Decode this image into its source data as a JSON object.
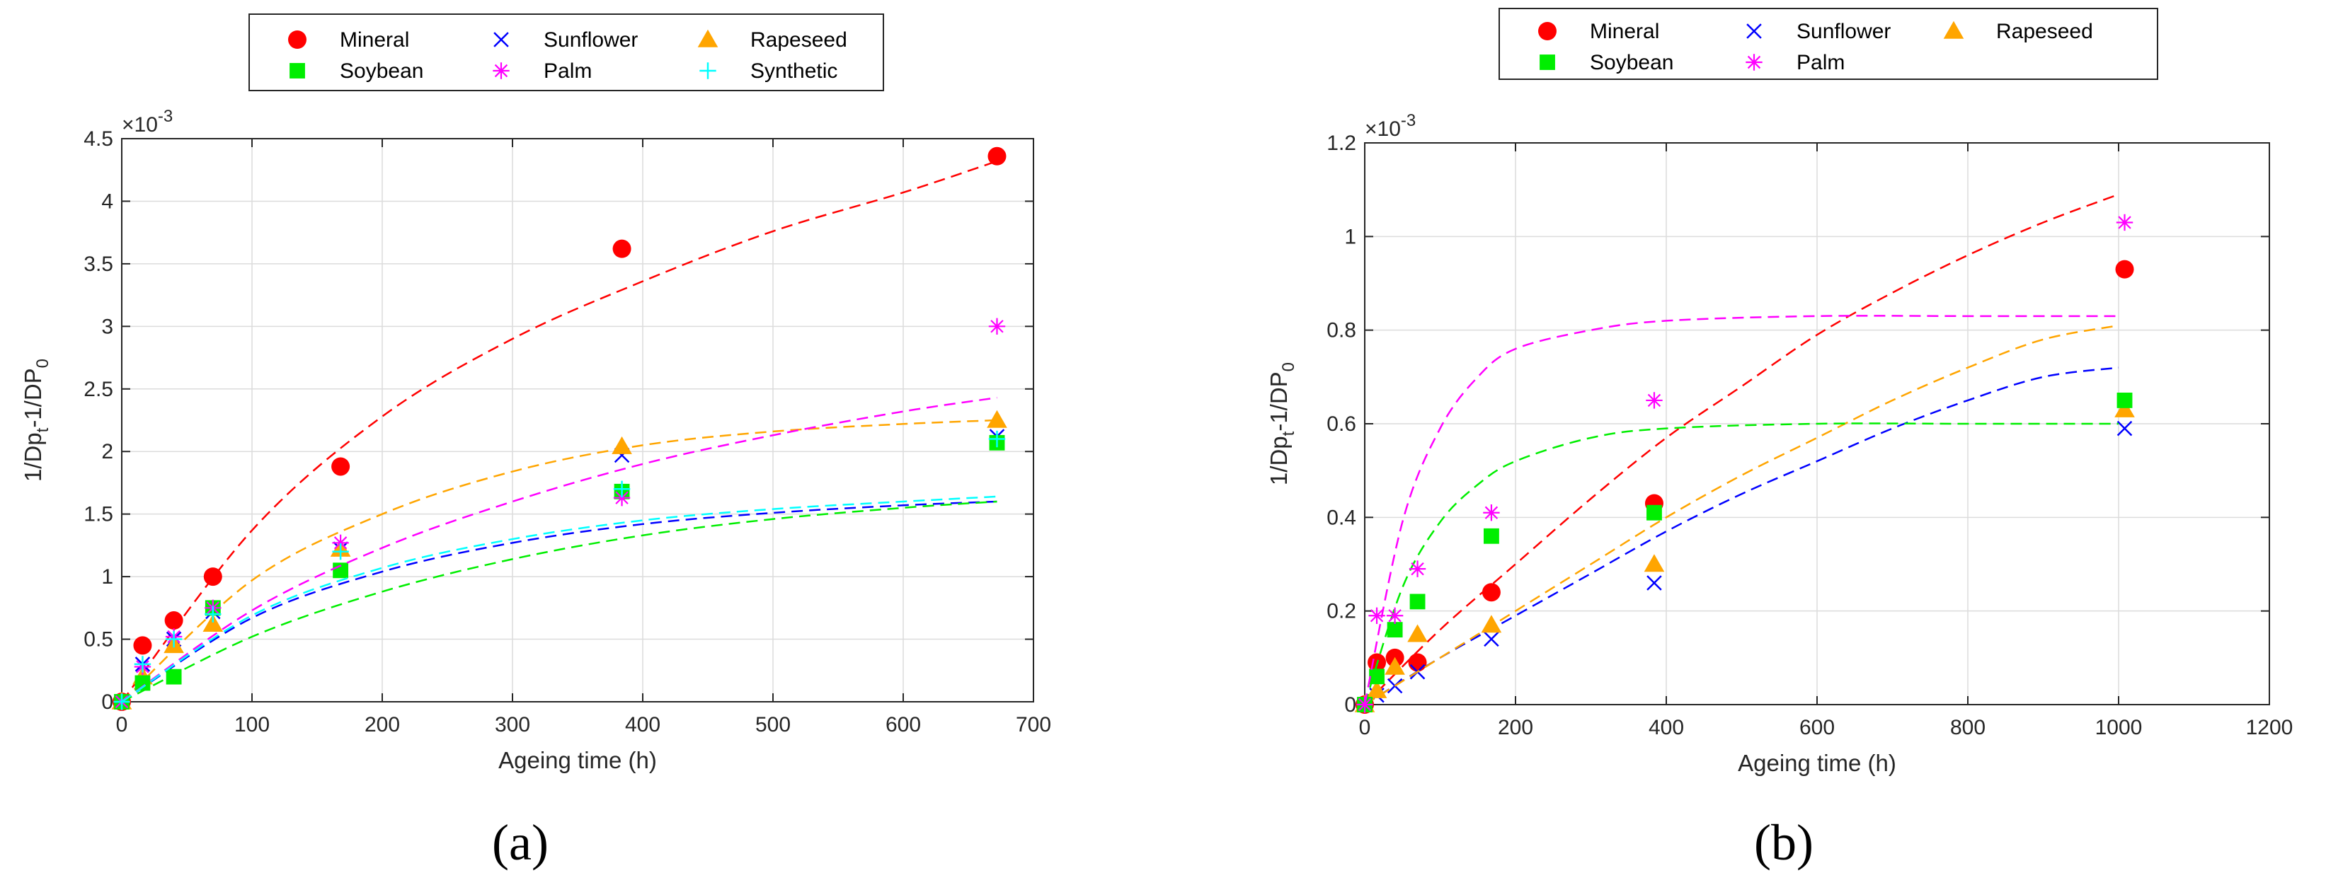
{
  "figure": {
    "caption_a": "(a)",
    "caption_b": "(b)"
  },
  "chart_data": [
    {
      "type": "scatter",
      "panel": "a",
      "xlabel": "Ageing time (h)",
      "ylabel": "1/Dp_t-1/DP_0",
      "ylabel_parts": {
        "main": "1/Dp",
        "sub1": "t",
        "mid": "-1/DP",
        "sub2": "0"
      },
      "y_multiplier": "×10",
      "y_multiplier_exp": "-3",
      "xlim": [
        0,
        700
      ],
      "ylim": [
        0,
        4.5
      ],
      "xticks": [
        0,
        100,
        200,
        300,
        400,
        500,
        600,
        700
      ],
      "yticks": [
        0,
        0.5,
        1,
        1.5,
        2,
        2.5,
        3,
        3.5,
        4,
        4.5
      ],
      "ytick_labels": [
        "0",
        "0.5",
        "1",
        "1.5",
        "2",
        "2.5",
        "3",
        "3.5",
        "4",
        "4.5"
      ],
      "grid": true,
      "legend": {
        "placement": "top",
        "columns": 3,
        "entries": [
          "Mineral",
          "Sunflower",
          "Rapeseed",
          "Soybean",
          "Palm",
          "Synthetic"
        ]
      },
      "series": [
        {
          "name": "Mineral",
          "color": "#ff0000",
          "marker": "circle",
          "x": [
            0,
            16,
            40,
            70,
            168,
            384,
            672
          ],
          "y": [
            0,
            0.45,
            0.65,
            1.0,
            1.88,
            3.62,
            4.36
          ],
          "fit_x": [
            0,
            100,
            200,
            300,
            400,
            500,
            600,
            672
          ],
          "fit_y": [
            0,
            1.37,
            2.28,
            2.9,
            3.36,
            3.76,
            4.07,
            4.32
          ]
        },
        {
          "name": "Sunflower",
          "color": "#0000ff",
          "marker": "x",
          "x": [
            0,
            16,
            40,
            70,
            168,
            384,
            672
          ],
          "y": [
            0,
            0.3,
            0.5,
            0.72,
            1.22,
            1.97,
            2.12
          ],
          "fit_x": [
            0,
            100,
            200,
            300,
            400,
            500,
            600,
            672
          ],
          "fit_y": [
            0,
            0.67,
            1.04,
            1.27,
            1.42,
            1.51,
            1.57,
            1.6
          ]
        },
        {
          "name": "Rapeseed",
          "color": "#ffa500",
          "marker": "triangle",
          "x": [
            0,
            16,
            40,
            70,
            168,
            384,
            672
          ],
          "y": [
            0,
            0.2,
            0.45,
            0.62,
            1.22,
            2.04,
            2.25
          ],
          "fit_x": [
            0,
            100,
            200,
            300,
            400,
            500,
            600,
            672
          ],
          "fit_y": [
            0,
            0.97,
            1.5,
            1.84,
            2.05,
            2.16,
            2.22,
            2.25
          ]
        },
        {
          "name": "Soybean",
          "color": "#00ee00",
          "marker": "square",
          "x": [
            0,
            16,
            40,
            70,
            168,
            384,
            672
          ],
          "y": [
            0,
            0.15,
            0.2,
            0.75,
            1.05,
            1.68,
            2.07
          ],
          "fit_x": [
            0,
            100,
            200,
            300,
            400,
            500,
            600,
            672
          ],
          "fit_y": [
            0,
            0.52,
            0.88,
            1.14,
            1.33,
            1.46,
            1.55,
            1.6
          ]
        },
        {
          "name": "Palm",
          "color": "#ff00ff",
          "marker": "asterisk",
          "x": [
            0,
            16,
            40,
            70,
            168,
            384,
            672
          ],
          "y": [
            0,
            0.28,
            0.52,
            0.75,
            1.27,
            1.63,
            3.0
          ],
          "fit_x": [
            0,
            100,
            200,
            300,
            400,
            500,
            600,
            672
          ],
          "fit_y": [
            0,
            0.73,
            1.23,
            1.6,
            1.9,
            2.13,
            2.32,
            2.43
          ]
        },
        {
          "name": "Synthetic",
          "color": "#00ffff",
          "marker": "plus",
          "x": [
            0,
            16,
            40,
            70,
            168,
            384,
            672
          ],
          "y": [
            0,
            0.3,
            0.5,
            0.7,
            1.2,
            1.7,
            2.1
          ],
          "fit_x": [
            0,
            100,
            200,
            300,
            400,
            500,
            600,
            672
          ],
          "fit_y": [
            0,
            0.69,
            1.07,
            1.3,
            1.45,
            1.54,
            1.6,
            1.64
          ]
        }
      ]
    },
    {
      "type": "scatter",
      "panel": "b",
      "xlabel": "Ageing time (h)",
      "ylabel": "1/Dp_t-1/DP_0",
      "ylabel_parts": {
        "main": "1/Dp",
        "sub1": "t",
        "mid": "-1/DP",
        "sub2": "0"
      },
      "y_multiplier": "×10",
      "y_multiplier_exp": "-3",
      "xlim": [
        0,
        1200
      ],
      "ylim": [
        0,
        1.2
      ],
      "xticks": [
        0,
        200,
        400,
        600,
        800,
        1000,
        1200
      ],
      "yticks": [
        0,
        0.2,
        0.4,
        0.6,
        0.8,
        1.0,
        1.2
      ],
      "ytick_labels": [
        "0",
        "0.2",
        "0.4",
        "0.6",
        "0.8",
        "1",
        "1.2"
      ],
      "grid": true,
      "legend": {
        "placement": "top",
        "columns": 3,
        "entries": [
          "Mineral",
          "Sunflower",
          "Rapeseed",
          "Soybean",
          "Palm"
        ]
      },
      "series": [
        {
          "name": "Mineral",
          "color": "#ff0000",
          "marker": "circle",
          "x": [
            0,
            16,
            40,
            70,
            168,
            384,
            1008
          ],
          "y": [
            0,
            0.09,
            0.1,
            0.09,
            0.24,
            0.43,
            0.93
          ],
          "fit_x": [
            0,
            100,
            200,
            300,
            400,
            500,
            600,
            700,
            800,
            900,
            1000
          ],
          "fit_y": [
            0,
            0.16,
            0.3,
            0.44,
            0.57,
            0.68,
            0.79,
            0.88,
            0.96,
            1.03,
            1.09
          ]
        },
        {
          "name": "Sunflower",
          "color": "#0000ff",
          "marker": "x",
          "x": [
            0,
            16,
            40,
            70,
            168,
            384,
            1008
          ],
          "y": [
            0,
            0.02,
            0.04,
            0.07,
            0.14,
            0.26,
            0.59
          ],
          "fit_x": [
            0,
            100,
            200,
            300,
            400,
            500,
            600,
            700,
            800,
            900,
            1000
          ],
          "fit_y": [
            0,
            0.1,
            0.19,
            0.28,
            0.37,
            0.45,
            0.52,
            0.59,
            0.65,
            0.7,
            0.72
          ]
        },
        {
          "name": "Rapeseed",
          "color": "#ffa500",
          "marker": "triangle",
          "x": [
            0,
            16,
            40,
            70,
            168,
            384,
            1008
          ],
          "y": [
            0,
            0.03,
            0.08,
            0.15,
            0.17,
            0.3,
            0.63
          ],
          "fit_x": [
            0,
            100,
            200,
            300,
            400,
            500,
            600,
            700,
            800,
            900,
            1000
          ],
          "fit_y": [
            0,
            0.1,
            0.2,
            0.3,
            0.4,
            0.49,
            0.57,
            0.65,
            0.72,
            0.78,
            0.81
          ]
        },
        {
          "name": "Soybean",
          "color": "#00ee00",
          "marker": "square",
          "x": [
            0,
            16,
            40,
            70,
            168,
            384,
            1008
          ],
          "y": [
            0,
            0.06,
            0.16,
            0.22,
            0.36,
            0.41,
            0.65
          ],
          "fit_x": [
            0,
            50,
            100,
            150,
            200,
            300,
            400,
            600,
            800,
            1000
          ],
          "fit_y": [
            0,
            0.25,
            0.39,
            0.47,
            0.52,
            0.57,
            0.59,
            0.6,
            0.6,
            0.6
          ]
        },
        {
          "name": "Palm",
          "color": "#ff00ff",
          "marker": "asterisk",
          "x": [
            0,
            16,
            40,
            70,
            168,
            384,
            1008
          ],
          "y": [
            0,
            0.19,
            0.19,
            0.29,
            0.41,
            0.65,
            1.03
          ],
          "fit_x": [
            0,
            50,
            100,
            150,
            200,
            300,
            400,
            600,
            800,
            1000
          ],
          "fit_y": [
            0,
            0.39,
            0.59,
            0.7,
            0.76,
            0.8,
            0.82,
            0.83,
            0.83,
            0.83
          ]
        }
      ]
    }
  ]
}
